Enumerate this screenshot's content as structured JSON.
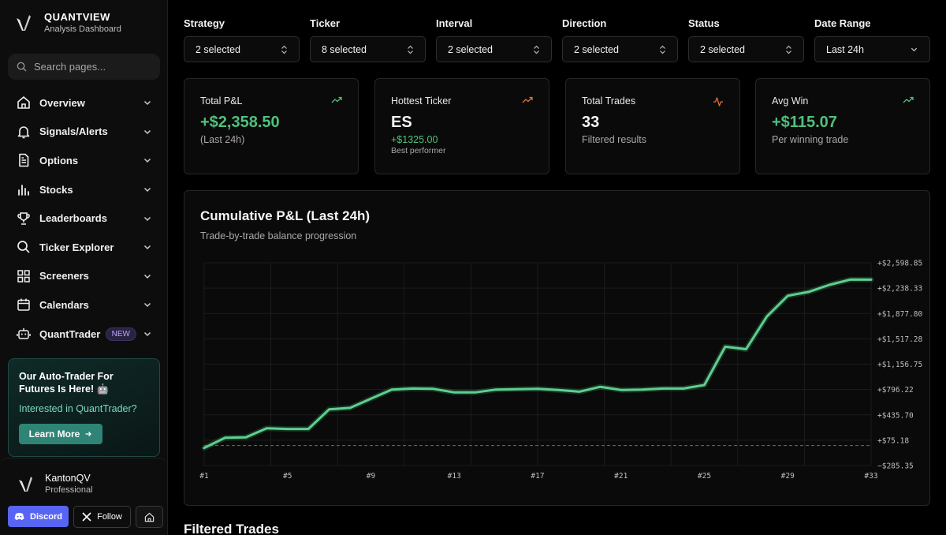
{
  "brand": {
    "name": "QUANTVIEW",
    "subtitle": "Analysis Dashboard"
  },
  "search": {
    "placeholder": "Search pages..."
  },
  "nav": {
    "items": [
      {
        "label": "Overview",
        "icon": "home-icon"
      },
      {
        "label": "Signals/Alerts",
        "icon": "bell-icon"
      },
      {
        "label": "Options",
        "icon": "document-icon"
      },
      {
        "label": "Stocks",
        "icon": "bar-chart-icon"
      },
      {
        "label": "Leaderboards",
        "icon": "trophy-icon"
      },
      {
        "label": "Ticker Explorer",
        "icon": "search-icon"
      },
      {
        "label": "Screeners",
        "icon": "grid-icon"
      },
      {
        "label": "Calendars",
        "icon": "calendar-icon"
      },
      {
        "label": "QuantTrader",
        "icon": "bot-icon",
        "badge": "NEW"
      }
    ]
  },
  "promo": {
    "title": "Our Auto-Trader For Futures Is Here! 🤖",
    "subtitle": "Interested in QuantTrader?",
    "button": "Learn More"
  },
  "profile": {
    "name": "KantonQV",
    "tier": "Professional"
  },
  "footer_buttons": {
    "discord": "Discord",
    "follow": "Follow"
  },
  "filters": [
    {
      "label": "Strategy",
      "value": "2 selected"
    },
    {
      "label": "Ticker",
      "value": "8 selected"
    },
    {
      "label": "Interval",
      "value": "2 selected"
    },
    {
      "label": "Direction",
      "value": "2 selected"
    },
    {
      "label": "Status",
      "value": "2 selected"
    },
    {
      "label": "Date Range",
      "value": "Last 24h"
    }
  ],
  "cards": {
    "total_pnl": {
      "label": "Total P&L",
      "value": "+$2,358.50",
      "sub": "(Last 24h)"
    },
    "hottest": {
      "label": "Hottest Ticker",
      "value": "ES",
      "sub": "+$1325.00",
      "sub2": "Best performer"
    },
    "trades": {
      "label": "Total Trades",
      "value": "33",
      "sub": "Filtered results"
    },
    "avg_win": {
      "label": "Avg Win",
      "value": "+$115.07",
      "sub": "Per winning trade"
    }
  },
  "colors": {
    "green": "#4fc17d",
    "orange": "#e8703a",
    "accent_teal": "#2e8475",
    "discord": "#5865f2"
  },
  "chart_data": {
    "type": "line",
    "title": "Cumulative P&L (Last 24h)",
    "subtitle": "Trade-by-trade balance progression",
    "x": [
      1,
      2,
      3,
      4,
      5,
      6,
      7,
      8,
      9,
      10,
      11,
      12,
      13,
      14,
      15,
      16,
      17,
      18,
      19,
      20,
      21,
      22,
      23,
      24,
      25,
      26,
      27,
      28,
      29,
      30,
      31,
      32,
      33
    ],
    "x_tick_labels": [
      "#1",
      "#5",
      "#9",
      "#13",
      "#17",
      "#21",
      "#25",
      "#29",
      "#33"
    ],
    "x_ticks": [
      1,
      5,
      9,
      13,
      17,
      21,
      25,
      29,
      33
    ],
    "y_tick_labels": [
      "+$2,598.85",
      "+$2,238.33",
      "+$1,877.80",
      "+$1,517.28",
      "+$1,156.75",
      "+$796.22",
      "+$435.70",
      "+$75.18",
      "−$285.35"
    ],
    "y_ticks": [
      2598.85,
      2238.33,
      1877.8,
      1517.28,
      1156.75,
      796.22,
      435.7,
      75.18,
      -285.35
    ],
    "ylim": [
      -285.35,
      2598.85
    ],
    "baseline": 0,
    "series": [
      {
        "values": [
          -35,
          110,
          115,
          245,
          235,
          235,
          515,
          535,
          665,
          795,
          810,
          805,
          755,
          755,
          795,
          800,
          805,
          790,
          765,
          835,
          790,
          795,
          810,
          810,
          860,
          1405,
          1370,
          1835,
          2130,
          2185,
          2285,
          2360,
          2358.5
        ]
      }
    ],
    "grid": true
  }
}
